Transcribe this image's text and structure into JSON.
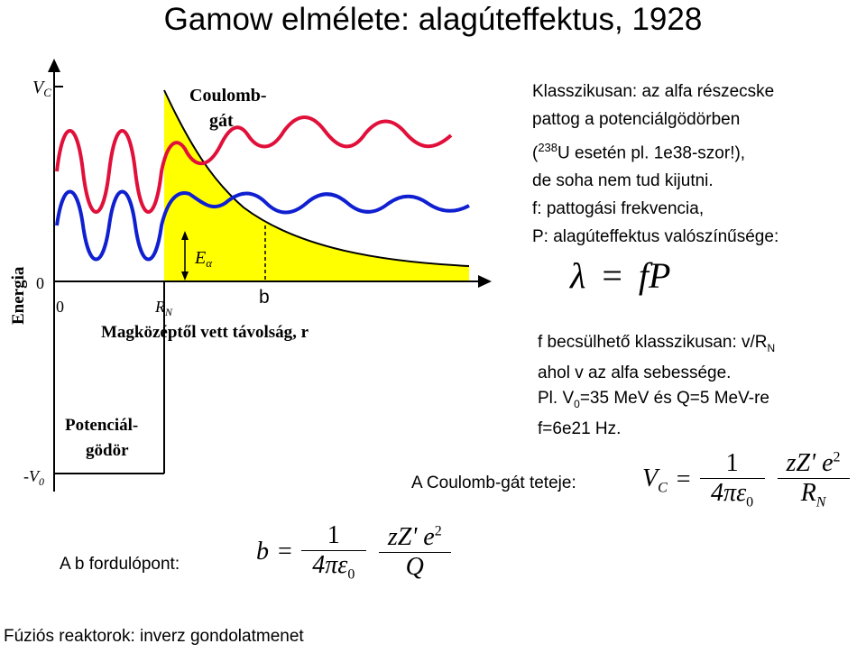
{
  "slide": {
    "title": "Gamow elmélete: alagúteffektus, 1928",
    "classical_text": [
      "Klasszikusan: az alfa részecske",
      "pattog a potenciálgödörben",
      "U esetén pl. 1e38-szor!),",
      "de soha nem tud kijutni.",
      "f: pattogási frekvencia,",
      "P: alagúteffektus valószínűsége:"
    ],
    "classical_prefix": "(",
    "isotope_mass": "238",
    "formula_lambda": {
      "lhs": "λ",
      "eq": "=",
      "rhs": "fP"
    },
    "f_estimate": {
      "line1": "f becsülhető klasszikusan: v/R",
      "line1_sub": "N",
      "line2": "ahol v az alfa sebessége.",
      "line3_a": "Pl. V",
      "line3_sub": "0",
      "line3_b": "=35 MeV és Q=5 MeV-re",
      "line4": "f=6e21 Hz."
    },
    "coulomb_top_label": "A Coulomb-gát teteje:",
    "turning_point_label": "A b fordulópont:",
    "footer": "Fúziós reaktorok: inverz gondolatmenet",
    "vc_formula": {
      "lhs": "V",
      "lhs_sub": "C",
      "eq": "=",
      "num1": "1",
      "den1": "4πε",
      "den1_sub": "0",
      "num2": "zZ' e",
      "num2_sup": "2",
      "den2": "R",
      "den2_sub": "N"
    },
    "b_formula": {
      "lhs": "b",
      "eq": "=",
      "num1": "1",
      "den1": "4πε",
      "den1_sub": "0",
      "num2": "zZ' e",
      "num2_sup": "2",
      "den2": "Q"
    }
  },
  "diagram": {
    "vc_label": "V",
    "vc_sub": "C",
    "coulomb_label_1": "Coulomb-",
    "coulomb_label_2": "gát",
    "ealpha_label": "E",
    "ealpha_sub": "α",
    "zero_y": "0",
    "zero_x": "0",
    "rn_label": "R",
    "rn_sub": "N",
    "b_label": "b",
    "x_axis_label": "Magközéptől vett távolság, r",
    "y_axis_label": "Energia",
    "well_label_1": "Potenciál-",
    "well_label_2": "gödör",
    "v0_label": "-V",
    "v0_sub": "0",
    "colors": {
      "barrier": "#ffff00",
      "red_wave": "#e0103a",
      "blue_wave": "#1020d0"
    }
  }
}
